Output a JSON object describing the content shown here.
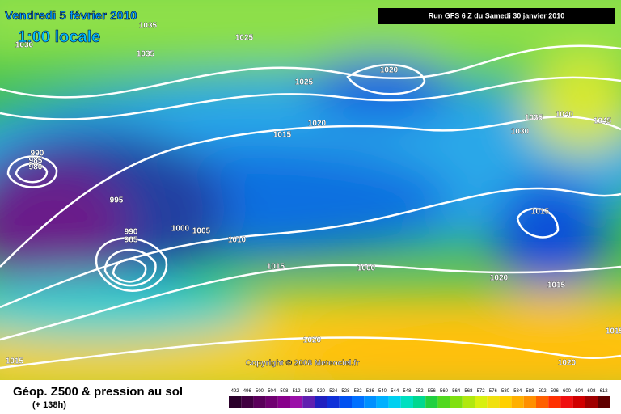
{
  "header": {
    "date": "Vendredi 5 février 2010",
    "time": "1:00 locale",
    "run": "Run GFS 6 Z du Samedi 30 janvier 2010"
  },
  "copyright": "Copyright © 2008 Meteociel.fr",
  "footer": {
    "title": "Géop. Z500 & pression au sol",
    "lead": "(+ 138h)"
  },
  "scale": [
    492,
    496,
    500,
    504,
    508,
    512,
    516,
    520,
    524,
    528,
    532,
    536,
    540,
    544,
    548,
    552,
    556,
    560,
    564,
    568,
    572,
    576,
    580,
    584,
    588,
    592,
    596,
    600,
    604,
    608,
    612
  ],
  "isobars": [
    "1035",
    "1030",
    "1035",
    "1025",
    "1025",
    "1020",
    "1020",
    "1015",
    "1035",
    "1040",
    "1045",
    "1030",
    "990",
    "985",
    "980",
    "995",
    "1000",
    "1005",
    "1010",
    "990",
    "985",
    "1015",
    "1015",
    "1000",
    "1020",
    "1015",
    "1020",
    "1020",
    "1015",
    "1015"
  ]
}
